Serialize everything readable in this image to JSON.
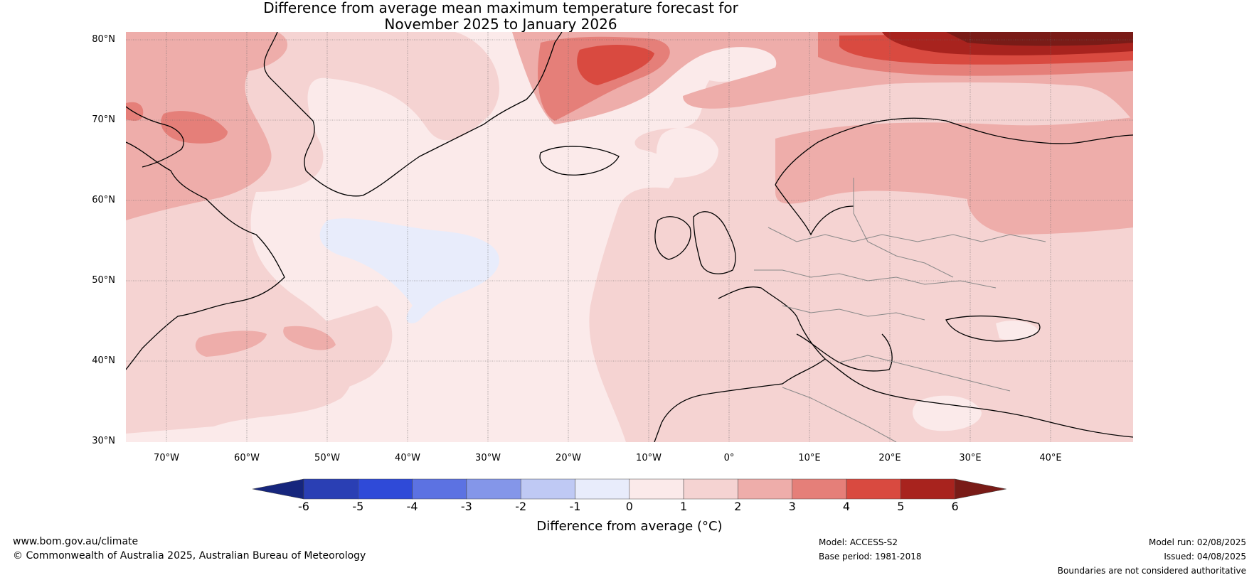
{
  "title_line1": "Difference from average mean maximum temperature forecast for",
  "title_line2": "November 2025 to January 2026",
  "lat_labels": [
    "80°N",
    "70°N",
    "60°N",
    "50°N",
    "40°N",
    "30°N"
  ],
  "lon_labels": [
    "70°W",
    "60°W",
    "50°W",
    "40°W",
    "30°W",
    "20°W",
    "10°W",
    "0°",
    "10°E",
    "20°E",
    "30°E",
    "40°E"
  ],
  "colorbar": {
    "ticks": [
      "-6",
      "-5",
      "-4",
      "-3",
      "-2",
      "-1",
      "0",
      "1",
      "2",
      "3",
      "4",
      "5",
      "6"
    ],
    "colors": [
      "#16267d",
      "#2a3fb4",
      "#2f4ad8",
      "#5c72e2",
      "#8496e9",
      "#bfc9f4",
      "#e8ecfb",
      "#fbeaea",
      "#f5d3d2",
      "#eeadaa",
      "#e57f79",
      "#d94a40",
      "#a8231e",
      "#791b17"
    ],
    "label": "Difference from average (°C)"
  },
  "footer": {
    "url": "www.bom.gov.au/climate",
    "copyright": "© Commonwealth of Australia 2025, Australian Bureau of Meteorology",
    "model": "Model: ACCESS-S2",
    "base_period": "Base period: 1981-2018",
    "model_run": "Model run: 02/08/2025",
    "issued": "Issued: 04/08/2025",
    "disclaimer": "Boundaries are not considered authoritative"
  }
}
